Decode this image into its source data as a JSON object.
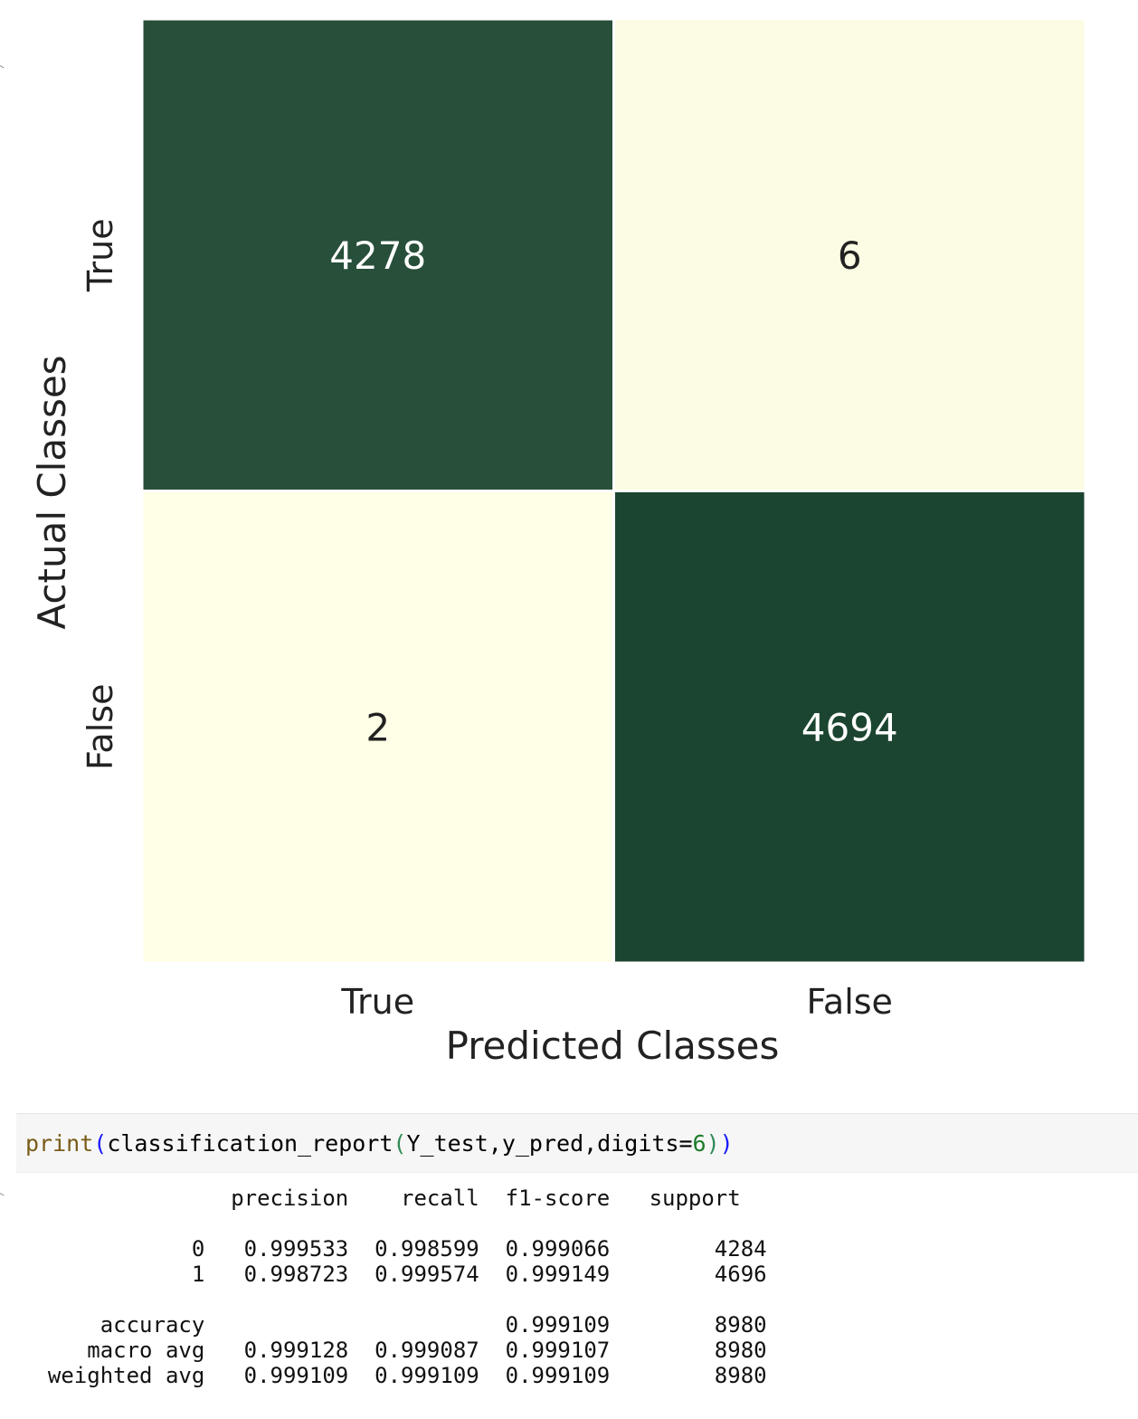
{
  "chart_data": {
    "type": "heatmap",
    "title": "",
    "xlabel": "Predicted Classes",
    "ylabel": "Actual Classes",
    "x_categories": [
      "True",
      "False"
    ],
    "y_categories": [
      "True",
      "False"
    ],
    "values": [
      [
        4278,
        6
      ],
      [
        2,
        4694
      ]
    ],
    "colormap": {
      "low": "#fffee6",
      "high": "#1b4530"
    },
    "legend": "none",
    "grid": false
  },
  "code_cell": {
    "fn": "print",
    "call": "classification_report",
    "args": "Y_test,y_pred,digits=",
    "digits": "6"
  },
  "report": {
    "header": [
      "precision",
      "recall",
      "f1-score",
      "support"
    ],
    "rows": [
      {
        "label": "0",
        "precision": "0.999533",
        "recall": "0.998599",
        "f1": "0.999066",
        "support": "4284"
      },
      {
        "label": "1",
        "precision": "0.998723",
        "recall": "0.999574",
        "f1": "0.999149",
        "support": "4696"
      }
    ],
    "summary": [
      {
        "label": "accuracy",
        "precision": "",
        "recall": "",
        "f1": "0.999109",
        "support": "8980"
      },
      {
        "label": "macro avg",
        "precision": "0.999128",
        "recall": "0.999087",
        "f1": "0.999107",
        "support": "8980"
      },
      {
        "label": "weighted avg",
        "precision": "0.999109",
        "recall": "0.999109",
        "f1": "0.999109",
        "support": "8980"
      }
    ]
  }
}
